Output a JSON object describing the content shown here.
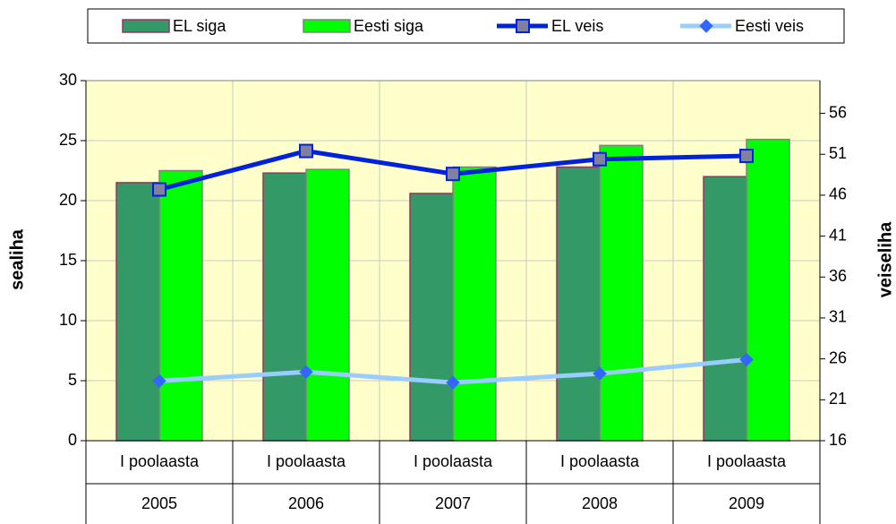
{
  "chart_data": {
    "type": "bar",
    "categories": [
      [
        "I poolaasta",
        "2005"
      ],
      [
        "I poolaasta",
        "2006"
      ],
      [
        "I poolaasta",
        "2007"
      ],
      [
        "I poolaasta",
        "2008"
      ],
      [
        "I poolaasta",
        "2009"
      ]
    ],
    "y_label": "sealiha",
    "y2_label": "veiseliha",
    "ylim": [
      0,
      30
    ],
    "yticks": [
      0,
      5,
      10,
      15,
      20,
      25,
      30
    ],
    "y2lim": [
      16,
      60
    ],
    "y2ticks": [
      16,
      21,
      26,
      31,
      36,
      41,
      46,
      51,
      56
    ],
    "grid": true,
    "legend": "top",
    "series": [
      {
        "name": "EL siga",
        "type": "bar",
        "color": "#339966",
        "values": [
          21.5,
          22.3,
          20.6,
          22.8,
          22.0
        ]
      },
      {
        "name": "Eesti siga",
        "type": "bar",
        "color": "#00ff00",
        "values": [
          22.5,
          22.6,
          22.8,
          24.6,
          25.1
        ]
      },
      {
        "name": "EL veis",
        "type": "line",
        "axis": "y2",
        "color": "#0022dd",
        "marker": "square",
        "values": [
          46.7,
          51.4,
          48.6,
          50.4,
          50.8
        ]
      },
      {
        "name": "Eesti veis",
        "type": "line",
        "axis": "y2",
        "color": "#99ccff",
        "marker": "diamond",
        "values": [
          23.3,
          24.4,
          23.1,
          24.2,
          25.9
        ]
      }
    ]
  }
}
